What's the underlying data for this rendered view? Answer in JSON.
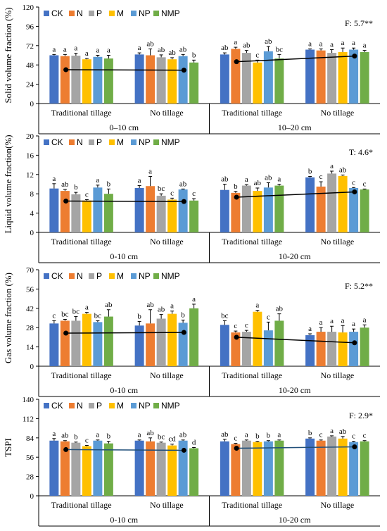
{
  "colors": {
    "CK": "#4472C4",
    "N": "#ED7D31",
    "P": "#A5A5A5",
    "M": "#FFC000",
    "NP": "#5B9BD5",
    "NMP": "#70AD47",
    "trend_top": "#000000",
    "trend_bottom": "#1F4E79"
  },
  "chart_data": [
    {
      "type": "bar",
      "ylabel": "Solid volume fraction (%)",
      "ylim": [
        0,
        120
      ],
      "yticks": [
        0,
        24,
        48,
        72,
        96,
        120
      ],
      "stat": "F: 5.7**",
      "legend": [
        "CK",
        "N",
        "P",
        "M",
        "NP",
        "NMP"
      ],
      "groups": [
        "Traditional tillage",
        "No tillage",
        "Traditional tillage",
        "No tillage"
      ],
      "depths": [
        "0–10 cm",
        "10–20 cm"
      ],
      "values": [
        [
          60,
          59,
          59.5,
          55,
          58,
          56
        ],
        [
          61,
          60,
          57.5,
          55,
          59,
          51
        ],
        [
          61,
          68,
          63,
          51,
          65,
          56
        ],
        [
          67,
          66,
          63,
          64,
          67,
          64
        ]
      ],
      "errors": [
        [
          1,
          2,
          3,
          1,
          2,
          4
        ],
        [
          2,
          8,
          3,
          2,
          2,
          3
        ],
        [
          2,
          2,
          3,
          3,
          6,
          5
        ],
        [
          1,
          2,
          4,
          5,
          2,
          2
        ]
      ],
      "letters": [
        [
          "a",
          "a",
          "a",
          "a",
          "a",
          "a"
        ],
        [
          "a",
          "ab",
          "ab",
          "ab",
          "ab",
          "b"
        ],
        [
          "ab",
          "a",
          "ab",
          "c",
          "ab",
          "bc"
        ],
        [
          "a",
          "a",
          "a",
          "a",
          "a",
          "a"
        ]
      ],
      "trend": [
        42,
        41.5,
        52,
        59
      ]
    },
    {
      "type": "bar",
      "ylabel": "Liquid volume fraction(%)",
      "ylim": [
        0,
        20
      ],
      "yticks": [
        0,
        4,
        8,
        12,
        16,
        20
      ],
      "stat": "T: 4.6*",
      "legend": [
        "CK",
        "N",
        "P",
        "M",
        "NP",
        "NMP"
      ],
      "groups": [
        "Traditional tillage",
        "No tillage",
        "Traditional tillage",
        "No tillage"
      ],
      "depths": [
        "0-10 cm",
        "10-20 cm"
      ],
      "values": [
        [
          9.1,
          8.6,
          7.9,
          6.6,
          9.3,
          8.0
        ],
        [
          9.2,
          9.6,
          7.6,
          6.8,
          8.9,
          6.6
        ],
        [
          8.8,
          8.2,
          9.7,
          8.6,
          9.3,
          9.7
        ],
        [
          11.4,
          9.5,
          12.2,
          11.7,
          9.2,
          8.9
        ]
      ],
      "errors": [
        [
          1,
          0.3,
          0.4,
          0.2,
          0.5,
          1
        ],
        [
          0.5,
          2,
          0.4,
          0.3,
          0.1,
          0.4
        ],
        [
          1.2,
          0.3,
          0.2,
          0.6,
          1,
          0.3
        ],
        [
          0.2,
          1,
          0.5,
          0.2,
          0.1,
          0.1
        ]
      ],
      "letters": [
        [
          "a",
          "ab",
          "b",
          "c",
          "a",
          "b"
        ],
        [
          "a",
          "a",
          "bc",
          "c",
          "ab",
          "c"
        ],
        [
          "ab",
          "b",
          "a",
          "ab",
          "ab",
          "a"
        ],
        [
          "b",
          "c",
          "a",
          "ab",
          "c",
          "c"
        ]
      ],
      "trend": [
        6.5,
        6.4,
        7.3,
        8.4
      ]
    },
    {
      "type": "bar",
      "ylabel": "Gas volume fraction (%)",
      "ylim": [
        0,
        70
      ],
      "yticks": [
        0,
        14,
        28,
        42,
        56,
        70
      ],
      "stat": "F: 5.2**",
      "legend": [
        "CK",
        "N",
        "P",
        "M",
        "NP",
        "NMP"
      ],
      "groups": [
        "Traditional tillage",
        "No tillage",
        "Traditional tillage",
        "No tillage"
      ],
      "depths": [
        "0-10 cm",
        "10-20 cm"
      ],
      "values": [
        [
          31,
          33,
          33,
          38,
          32,
          36
        ],
        [
          29.5,
          31,
          34.5,
          38,
          31.5,
          42
        ],
        [
          30,
          24.5,
          25,
          39.5,
          26,
          33
        ],
        [
          22.5,
          25,
          25,
          24.5,
          25,
          28
        ]
      ],
      "errors": [
        [
          2,
          1,
          3,
          1,
          1,
          5
        ],
        [
          3,
          10,
          3,
          2,
          2,
          3
        ],
        [
          3,
          1,
          1,
          1,
          6,
          5
        ],
        [
          1,
          3,
          4,
          5,
          2,
          2
        ]
      ],
      "letters": [
        [
          "c",
          "bc",
          "bc",
          "a",
          "bc",
          "ab"
        ],
        [
          "b",
          "ab",
          "ab",
          "a",
          "b",
          "a"
        ],
        [
          "bc",
          "c",
          "c",
          "a",
          "c",
          "ab"
        ],
        [
          "a",
          "a",
          "a",
          "a",
          "a",
          "a"
        ]
      ],
      "trend": [
        24,
        24.5,
        21,
        17
      ]
    },
    {
      "type": "bar",
      "ylabel": "TSPI",
      "ylim": [
        0,
        140
      ],
      "yticks": [
        0,
        28,
        56,
        84,
        112,
        140
      ],
      "stat": "F: 2.9*",
      "legend": [
        "CK",
        "N",
        "P",
        "M",
        "NP",
        "NMP"
      ],
      "groups": [
        "Traditional tillage",
        "No tillage",
        "Traditional tillage",
        "No tillage"
      ],
      "depths": [
        "0-10 cm",
        "10-20 cm"
      ],
      "values": [
        [
          80,
          79,
          77,
          72,
          80,
          76
        ],
        [
          80,
          79,
          77,
          73,
          80,
          69
        ],
        [
          79,
          75,
          80,
          78,
          79,
          80
        ],
        [
          83,
          80,
          86,
          83,
          78,
          79
        ]
      ],
      "errors": [
        [
          3,
          1,
          1,
          1,
          1,
          3
        ],
        [
          1,
          5,
          1,
          2,
          1,
          1
        ],
        [
          3,
          1,
          1,
          1,
          1,
          1
        ],
        [
          1,
          1,
          1,
          3,
          1,
          1
        ]
      ],
      "letters": [
        [
          "a",
          "ab",
          "b",
          "c",
          "a",
          "b"
        ],
        [
          "a",
          "ab",
          "bc",
          "cd",
          "ab",
          "d"
        ],
        [
          "ab",
          "c",
          "a",
          "b",
          "b",
          "a"
        ],
        [
          "b",
          "c",
          "a",
          "ab",
          "c",
          "c"
        ]
      ],
      "trend": [
        67,
        66,
        69,
        71
      ]
    }
  ]
}
